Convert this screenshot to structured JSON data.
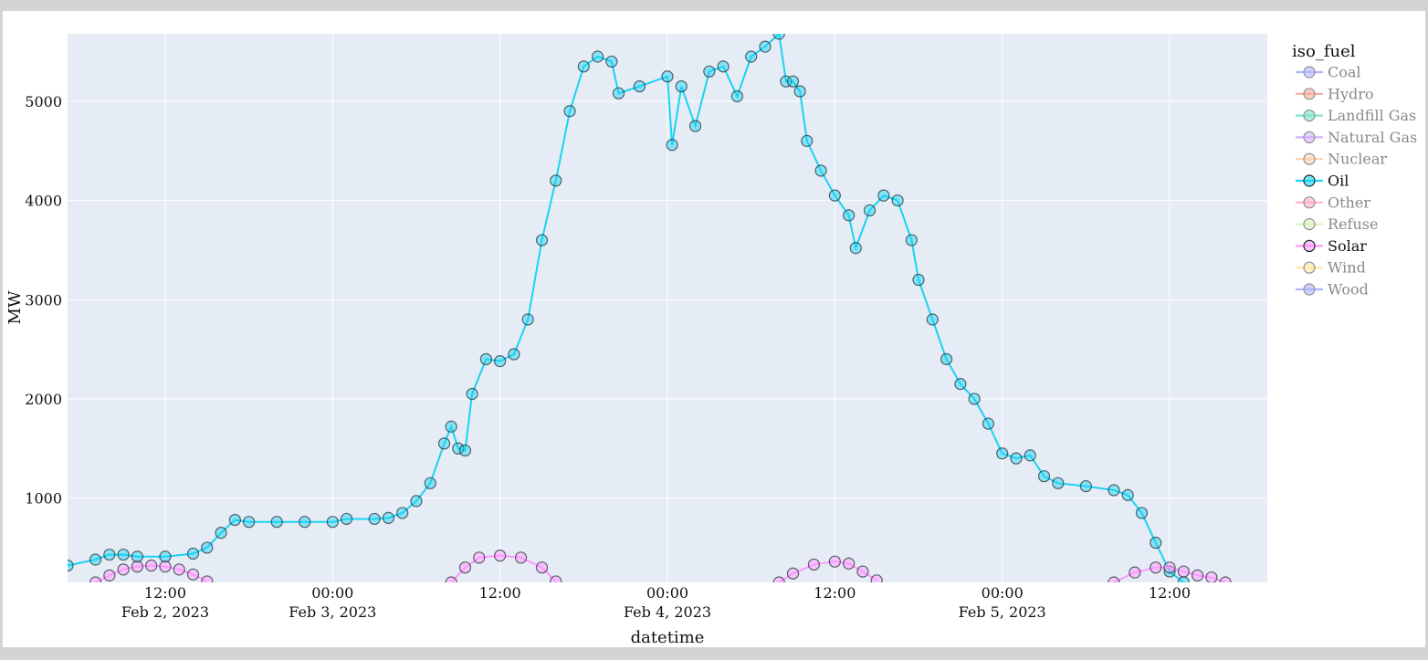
{
  "chart_data": {
    "type": "line",
    "xlabel": "datetime",
    "ylabel": "MW",
    "xlim": [
      "2023-02-02T05:00",
      "2023-02-05T19:00"
    ],
    "ylim": [
      150,
      5680
    ],
    "y_ticks": [
      1000,
      2000,
      3000,
      4000,
      5000
    ],
    "x_ticks": [
      {
        "t": "2023-02-02T12:00",
        "line1": "12:00",
        "line2": "Feb 2, 2023"
      },
      {
        "t": "2023-02-03T00:00",
        "line1": "00:00",
        "line2": "Feb 3, 2023"
      },
      {
        "t": "2023-02-03T12:00",
        "line1": "12:00",
        "line2": ""
      },
      {
        "t": "2023-02-04T00:00",
        "line1": "00:00",
        "line2": "Feb 4, 2023"
      },
      {
        "t": "2023-02-04T12:00",
        "line1": "12:00",
        "line2": ""
      },
      {
        "t": "2023-02-05T00:00",
        "line1": "00:00",
        "line2": "Feb 5, 2023"
      },
      {
        "t": "2023-02-05T12:00",
        "line1": "12:00",
        "line2": ""
      }
    ],
    "grid": true,
    "legend": {
      "title": "iso_fuel",
      "placement": "right",
      "entries": [
        {
          "name": "Coal",
          "color": "#636efa",
          "active": false
        },
        {
          "name": "Hydro",
          "color": "#ef553b",
          "active": false
        },
        {
          "name": "Landfill Gas",
          "color": "#00cc96",
          "active": false
        },
        {
          "name": "Natural Gas",
          "color": "#ab63fa",
          "active": false
        },
        {
          "name": "Nuclear",
          "color": "#ffa15a",
          "active": false
        },
        {
          "name": "Oil",
          "color": "#19d3f3",
          "active": true
        },
        {
          "name": "Other",
          "color": "#ff6692",
          "active": false
        },
        {
          "name": "Refuse",
          "color": "#b6e880",
          "active": false
        },
        {
          "name": "Solar",
          "color": "#ff97ff",
          "active": true
        },
        {
          "name": "Wind",
          "color": "#fecb52",
          "active": false
        },
        {
          "name": "Wood",
          "color": "#636efa",
          "active": false
        }
      ]
    },
    "series": [
      {
        "name": "Oil",
        "color": "#19d3f3",
        "points": [
          [
            "2023-02-02T05:00",
            320
          ],
          [
            "2023-02-02T07:00",
            380
          ],
          [
            "2023-02-02T08:00",
            430
          ],
          [
            "2023-02-02T09:00",
            430
          ],
          [
            "2023-02-02T10:00",
            410
          ],
          [
            "2023-02-02T12:00",
            410
          ],
          [
            "2023-02-02T14:00",
            440
          ],
          [
            "2023-02-02T15:00",
            500
          ],
          [
            "2023-02-02T16:00",
            650
          ],
          [
            "2023-02-02T17:00",
            780
          ],
          [
            "2023-02-02T18:00",
            760
          ],
          [
            "2023-02-02T20:00",
            760
          ],
          [
            "2023-02-02T22:00",
            760
          ],
          [
            "2023-02-03T00:00",
            760
          ],
          [
            "2023-02-03T01:00",
            790
          ],
          [
            "2023-02-03T03:00",
            790
          ],
          [
            "2023-02-03T04:00",
            800
          ],
          [
            "2023-02-03T05:00",
            850
          ],
          [
            "2023-02-03T06:00",
            970
          ],
          [
            "2023-02-03T07:00",
            1150
          ],
          [
            "2023-02-03T08:00",
            1550
          ],
          [
            "2023-02-03T08:30",
            1720
          ],
          [
            "2023-02-03T09:00",
            1500
          ],
          [
            "2023-02-03T09:30",
            1480
          ],
          [
            "2023-02-03T10:00",
            2050
          ],
          [
            "2023-02-03T11:00",
            2400
          ],
          [
            "2023-02-03T12:00",
            2380
          ],
          [
            "2023-02-03T13:00",
            2450
          ],
          [
            "2023-02-03T14:00",
            2800
          ],
          [
            "2023-02-03T15:00",
            3600
          ],
          [
            "2023-02-03T16:00",
            4200
          ],
          [
            "2023-02-03T17:00",
            4900
          ],
          [
            "2023-02-03T18:00",
            5350
          ],
          [
            "2023-02-03T19:00",
            5450
          ],
          [
            "2023-02-03T20:00",
            5400
          ],
          [
            "2023-02-03T20:30",
            5080
          ],
          [
            "2023-02-03T22:00",
            5150
          ],
          [
            "2023-02-04T00:00",
            5250
          ],
          [
            "2023-02-04T00:20",
            4560
          ],
          [
            "2023-02-04T01:00",
            5150
          ],
          [
            "2023-02-04T02:00",
            4750
          ],
          [
            "2023-02-04T03:00",
            5300
          ],
          [
            "2023-02-04T04:00",
            5350
          ],
          [
            "2023-02-04T05:00",
            5050
          ],
          [
            "2023-02-04T06:00",
            5450
          ],
          [
            "2023-02-04T07:00",
            5550
          ],
          [
            "2023-02-04T08:00",
            5680
          ],
          [
            "2023-02-04T08:30",
            5200
          ],
          [
            "2023-02-04T09:00",
            5200
          ],
          [
            "2023-02-04T09:30",
            5100
          ],
          [
            "2023-02-04T10:00",
            4600
          ],
          [
            "2023-02-04T11:00",
            4300
          ],
          [
            "2023-02-04T12:00",
            4050
          ],
          [
            "2023-02-04T13:00",
            3850
          ],
          [
            "2023-02-04T13:30",
            3520
          ],
          [
            "2023-02-04T14:30",
            3900
          ],
          [
            "2023-02-04T15:30",
            4050
          ],
          [
            "2023-02-04T16:30",
            4000
          ],
          [
            "2023-02-04T17:30",
            3600
          ],
          [
            "2023-02-04T18:00",
            3200
          ],
          [
            "2023-02-04T19:00",
            2800
          ],
          [
            "2023-02-04T20:00",
            2400
          ],
          [
            "2023-02-04T21:00",
            2150
          ],
          [
            "2023-02-04T22:00",
            2000
          ],
          [
            "2023-02-04T23:00",
            1750
          ],
          [
            "2023-02-05T00:00",
            1450
          ],
          [
            "2023-02-05T01:00",
            1400
          ],
          [
            "2023-02-05T02:00",
            1430
          ],
          [
            "2023-02-05T03:00",
            1220
          ],
          [
            "2023-02-05T04:00",
            1150
          ],
          [
            "2023-02-05T06:00",
            1120
          ],
          [
            "2023-02-05T08:00",
            1080
          ],
          [
            "2023-02-05T09:00",
            1030
          ],
          [
            "2023-02-05T10:00",
            850
          ],
          [
            "2023-02-05T11:00",
            550
          ],
          [
            "2023-02-05T12:00",
            260
          ],
          [
            "2023-02-05T13:00",
            150
          ]
        ]
      },
      {
        "name": "Solar",
        "color": "#ff97ff",
        "points": [
          [
            "2023-02-02T07:00",
            150
          ],
          [
            "2023-02-02T08:00",
            220
          ],
          [
            "2023-02-02T09:00",
            280
          ],
          [
            "2023-02-02T10:00",
            310
          ],
          [
            "2023-02-02T11:00",
            320
          ],
          [
            "2023-02-02T12:00",
            310
          ],
          [
            "2023-02-02T13:00",
            280
          ],
          [
            "2023-02-02T14:00",
            230
          ],
          [
            "2023-02-02T15:00",
            160
          ],
          [
            "2023-02-03T08:30",
            150
          ],
          [
            "2023-02-03T09:30",
            300
          ],
          [
            "2023-02-03T10:30",
            400
          ],
          [
            "2023-02-03T12:00",
            420
          ],
          [
            "2023-02-03T13:30",
            400
          ],
          [
            "2023-02-03T15:00",
            300
          ],
          [
            "2023-02-03T16:00",
            160
          ],
          [
            "2023-02-04T08:00",
            150
          ],
          [
            "2023-02-04T09:00",
            240
          ],
          [
            "2023-02-04T10:30",
            330
          ],
          [
            "2023-02-04T12:00",
            360
          ],
          [
            "2023-02-04T13:00",
            340
          ],
          [
            "2023-02-04T14:00",
            260
          ],
          [
            "2023-02-04T15:00",
            170
          ],
          [
            "2023-02-05T08:00",
            150
          ],
          [
            "2023-02-05T09:30",
            250
          ],
          [
            "2023-02-05T11:00",
            300
          ],
          [
            "2023-02-05T12:00",
            300
          ],
          [
            "2023-02-05T13:00",
            260
          ],
          [
            "2023-02-05T14:00",
            220
          ],
          [
            "2023-02-05T15:00",
            200
          ],
          [
            "2023-02-05T16:00",
            150
          ]
        ]
      }
    ]
  }
}
